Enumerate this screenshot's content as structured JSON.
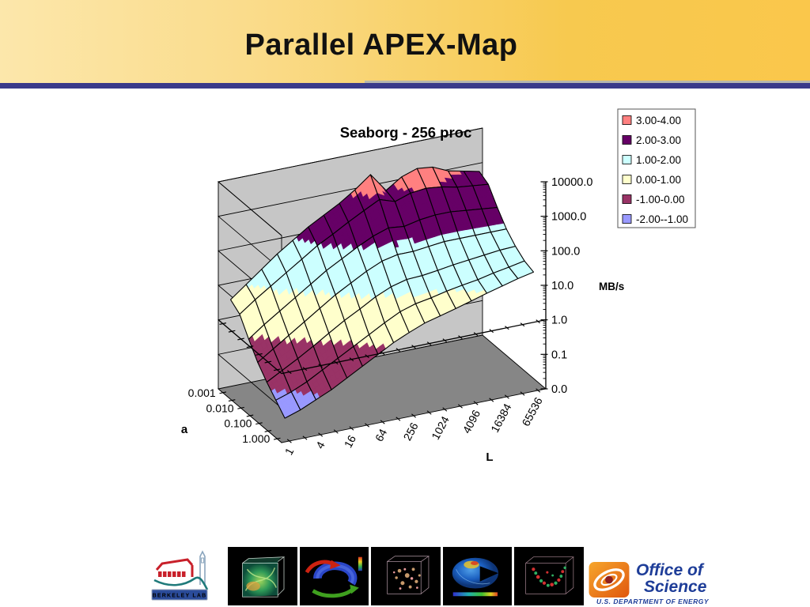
{
  "slide": {
    "title": "Parallel APEX-Map"
  },
  "chart": {
    "title": "Seaborg - 256 proc",
    "z_axis": {
      "title": "MB/s",
      "tick_labels": [
        "10000.0",
        "1000.0",
        "100.0",
        "10.0",
        "1.0",
        "0.1",
        "0.0"
      ]
    },
    "x_axis": {
      "title": "L",
      "tick_labels": [
        "1",
        "4",
        "16",
        "64",
        "256",
        "1024",
        "4096",
        "16384",
        "65536"
      ]
    },
    "y_axis": {
      "title": "a",
      "tick_labels": [
        "0.001",
        "0.010",
        "0.100",
        "1.000"
      ]
    },
    "legend": [
      {
        "label": "3.00-4.00",
        "color": "#FF8080"
      },
      {
        "label": "2.00-3.00",
        "color": "#660066"
      },
      {
        "label": "1.00-2.00",
        "color": "#CCFFFF"
      },
      {
        "label": "0.00-1.00",
        "color": "#FFFFCC"
      },
      {
        "label": "-1.00-0.00",
        "color": "#993366"
      },
      {
        "label": "-2.00--1.00",
        "color": "#9999FF"
      }
    ]
  },
  "chart_data": {
    "type": "surface",
    "title": "Seaborg - 256 proc",
    "xlabel": "L",
    "ylabel": "a",
    "zlabel": "MB/s",
    "z_scale": "log10",
    "z_axis_tick_values": [
      10000.0,
      1000.0,
      100.0,
      10.0,
      1.0,
      0.1,
      0.0
    ],
    "x_values": [
      1,
      2,
      4,
      8,
      16,
      32,
      64,
      128,
      256,
      512,
      1024,
      2048,
      4096,
      8192,
      16384,
      32768,
      65536
    ],
    "x_tick_labels_shown": [
      "1",
      "4",
      "16",
      "64",
      "256",
      "1024",
      "4096",
      "16384",
      "65536"
    ],
    "series_values_a": [
      0.001,
      0.0032,
      0.01,
      0.032,
      0.1,
      0.32,
      1.0
    ],
    "series_tick_labels_shown": [
      "0.001",
      "0.010",
      "0.100",
      "1.000"
    ],
    "z_range_log10": [
      -2,
      4
    ],
    "z_matrix_log10": [
      [
        0.65,
        1.0,
        1.35,
        1.7,
        2.0,
        2.3,
        2.55,
        2.8,
        3.1,
        3.45,
        2.9,
        3.2,
        3.35,
        3.3,
        3.1,
        3.0,
        2.9
      ],
      [
        0.45,
        0.78,
        1.08,
        1.38,
        1.68,
        1.98,
        2.22,
        2.48,
        2.72,
        2.95,
        2.8,
        2.95,
        3.0,
        2.95,
        2.85,
        2.8,
        2.75
      ],
      [
        -0.05,
        0.28,
        0.58,
        0.88,
        1.18,
        1.48,
        1.73,
        1.98,
        2.2,
        2.35,
        2.3,
        2.4,
        2.45,
        2.45,
        2.4,
        2.35,
        2.3
      ],
      [
        -0.5,
        -0.2,
        0.1,
        0.4,
        0.7,
        1.0,
        1.25,
        1.5,
        1.7,
        1.8,
        1.8,
        1.85,
        1.9,
        1.9,
        1.9,
        1.9,
        1.9
      ],
      [
        -0.85,
        -0.6,
        -0.35,
        -0.08,
        0.2,
        0.48,
        0.72,
        0.98,
        1.18,
        1.3,
        1.32,
        1.38,
        1.45,
        1.5,
        1.55,
        1.6,
        1.62
      ],
      [
        -1.15,
        -1.0,
        -0.8,
        -0.55,
        -0.3,
        -0.05,
        0.2,
        0.45,
        0.68,
        0.82,
        0.9,
        1.0,
        1.08,
        1.15,
        1.25,
        1.33,
        1.42
      ],
      [
        -1.45,
        -1.3,
        -1.1,
        -0.9,
        -0.65,
        -0.4,
        -0.15,
        0.1,
        0.3,
        0.48,
        0.6,
        0.72,
        0.85,
        0.98,
        1.1,
        1.22,
        1.32
      ]
    ],
    "bands": [
      {
        "min": -2,
        "max": -1,
        "label": "-2.00--1.00",
        "color": "#9999FF"
      },
      {
        "min": -1,
        "max": 0,
        "label": "-1.00-0.00",
        "color": "#993366"
      },
      {
        "min": 0,
        "max": 1,
        "label": "0.00-1.00",
        "color": "#FFFFCC"
      },
      {
        "min": 1,
        "max": 2,
        "label": "1.00-2.00",
        "color": "#CCFFFF"
      },
      {
        "min": 2,
        "max": 3,
        "label": "2.00-3.00",
        "color": "#660066"
      },
      {
        "min": 3,
        "max": 4,
        "label": "3.00-4.00",
        "color": "#FF8080"
      }
    ],
    "legend_position": "top-right",
    "grid": true
  },
  "footer": {
    "berkeley_label": "BERKELEY LAB",
    "office_line1": "Office of",
    "office_line2": "Science",
    "doe_line": "U.S. DEPARTMENT OF ENERGY"
  }
}
